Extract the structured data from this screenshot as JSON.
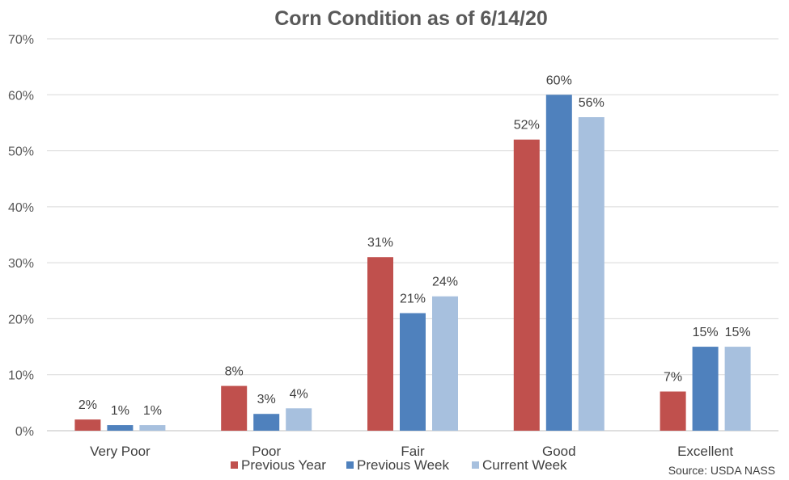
{
  "chart_data": {
    "type": "bar",
    "title": "Corn Condition as of 6/14/20",
    "xlabel": "",
    "ylabel": "",
    "categories": [
      "Very Poor",
      "Poor",
      "Fair",
      "Good",
      "Excellent"
    ],
    "series": [
      {
        "name": "Previous Year",
        "color": "#c0504d",
        "values": [
          2,
          8,
          31,
          52,
          7
        ],
        "labels": [
          "2%",
          "8%",
          "31%",
          "52%",
          "7%"
        ]
      },
      {
        "name": "Previous Week",
        "color": "#4f81bd",
        "values": [
          1,
          3,
          21,
          60,
          15
        ],
        "labels": [
          "1%",
          "3%",
          "21%",
          "60%",
          "15%"
        ]
      },
      {
        "name": "Current Week",
        "color": "#a7c0de",
        "values": [
          1,
          4,
          24,
          56,
          15
        ],
        "labels": [
          "1%",
          "4%",
          "24%",
          "56%",
          "15%"
        ]
      }
    ],
    "ylim": [
      0,
      70
    ],
    "yticks": [
      0,
      10,
      20,
      30,
      40,
      50,
      60,
      70
    ],
    "ytick_labels": [
      "0%",
      "10%",
      "20%",
      "30%",
      "40%",
      "50%",
      "60%",
      "70%"
    ],
    "grid": true,
    "legend_position": "bottom",
    "source": "Source: USDA NASS"
  }
}
